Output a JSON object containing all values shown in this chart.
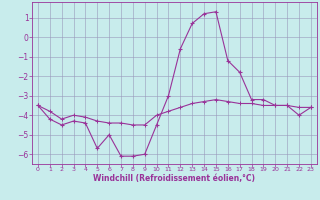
{
  "xlabel": "Windchill (Refroidissement éolien,°C)",
  "background_color": "#c8ecec",
  "line_color": "#993399",
  "grid_color": "#9999bb",
  "hours": [
    0,
    1,
    2,
    3,
    4,
    5,
    6,
    7,
    8,
    9,
    10,
    11,
    12,
    13,
    14,
    15,
    16,
    17,
    18,
    19,
    20,
    21,
    22,
    23
  ],
  "windchill": [
    -3.5,
    -4.2,
    -4.5,
    -4.3,
    -4.4,
    -5.7,
    -5.0,
    -6.1,
    -6.1,
    -6.0,
    -4.5,
    -3.0,
    -0.6,
    0.7,
    1.2,
    1.3,
    -1.2,
    -1.8,
    -3.2,
    -3.2,
    -3.5,
    -3.5,
    -4.0,
    -3.6
  ],
  "temperature": [
    -3.5,
    -3.8,
    -4.2,
    -4.0,
    -4.1,
    -4.3,
    -4.4,
    -4.4,
    -4.5,
    -4.5,
    -4.0,
    -3.8,
    -3.6,
    -3.4,
    -3.3,
    -3.2,
    -3.3,
    -3.4,
    -3.4,
    -3.5,
    -3.5,
    -3.5,
    -3.6,
    -3.6
  ],
  "ylim": [
    -6.5,
    1.8
  ],
  "xlim": [
    -0.5,
    23.5
  ],
  "yticks": [
    1,
    0,
    -1,
    -2,
    -3,
    -4,
    -5,
    -6
  ],
  "xticks": [
    0,
    1,
    2,
    3,
    4,
    5,
    6,
    7,
    8,
    9,
    10,
    11,
    12,
    13,
    14,
    15,
    16,
    17,
    18,
    19,
    20,
    21,
    22,
    23
  ],
  "xlabel_fontsize": 5.5,
  "ytick_fontsize": 5.5,
  "xtick_fontsize": 4.5
}
